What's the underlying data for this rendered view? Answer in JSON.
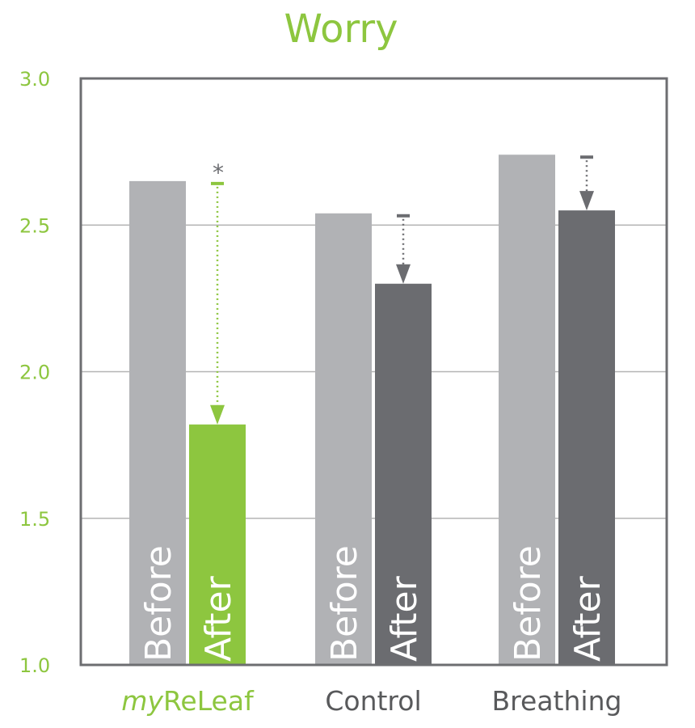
{
  "colors": {
    "accent": "#8dc63f",
    "before_bar": "#b1b2b5",
    "after_bar": "#6b6c70",
    "axis": "#6d6e71",
    "grid": "#b5b5b5",
    "category_text": "#58595b"
  },
  "chart_data": {
    "type": "bar",
    "title": "Worry",
    "xlabel": "",
    "ylabel": "",
    "ylim": [
      1.0,
      3.0
    ],
    "yticks": [
      "1.0",
      "1.5",
      "2.0",
      "2.5",
      "3.0"
    ],
    "grid": true,
    "categories": [
      {
        "prefix": "my",
        "label": "ReLeaf"
      },
      {
        "prefix": "",
        "label": "Control"
      },
      {
        "prefix": "",
        "label": "Breathing"
      }
    ],
    "series": [
      {
        "name": "Before",
        "values": [
          2.65,
          2.54,
          2.74
        ]
      },
      {
        "name": "After",
        "values": [
          1.82,
          2.3,
          2.55
        ]
      }
    ],
    "significance": [
      "*",
      "",
      ""
    ]
  }
}
